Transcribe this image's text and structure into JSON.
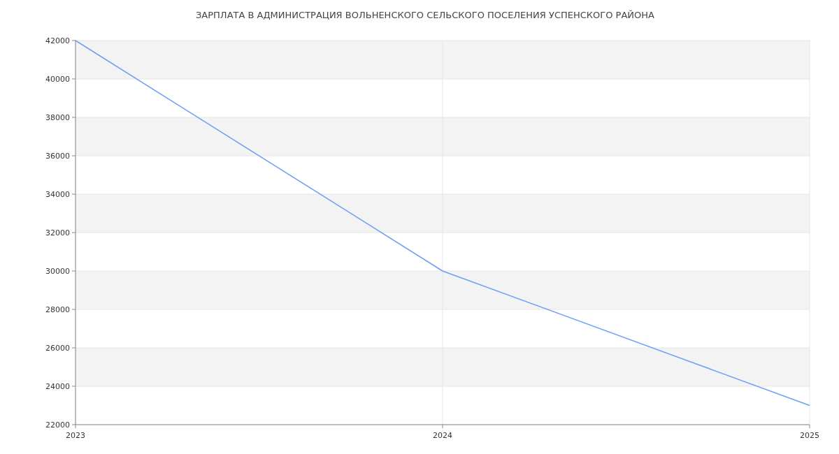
{
  "chart_data": {
    "type": "line",
    "title": "ЗАРПЛАТА В АДМИНИСТРАЦИЯ ВОЛЬНЕНСКОГО СЕЛЬСКОГО ПОСЕЛЕНИЯ УСПЕНСКОГО РАЙОНА",
    "x": [
      2023,
      2024,
      2025
    ],
    "series": [
      {
        "color": "#6d9ef5",
        "values": [
          42000,
          30000,
          23000
        ]
      }
    ],
    "xlim": [
      2023,
      2025
    ],
    "xticks": [
      2023,
      2024,
      2025
    ],
    "ylim": [
      22000,
      42000
    ],
    "yticks": [
      22000,
      24000,
      26000,
      28000,
      30000,
      32000,
      34000,
      36000,
      38000,
      40000,
      42000
    ],
    "grid": true,
    "marker": "none",
    "line_style": "solid"
  }
}
